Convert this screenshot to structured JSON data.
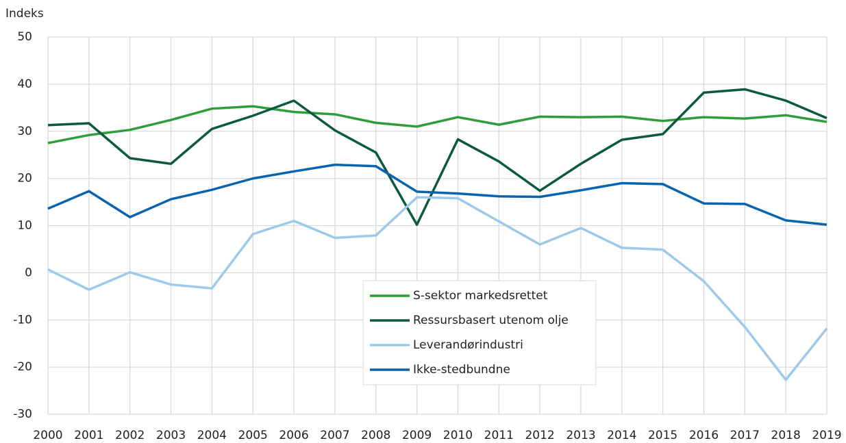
{
  "chart_data": {
    "type": "line",
    "y_axis_label": "Indeks",
    "categories": [
      "2000",
      "2001",
      "2002",
      "2003",
      "2004",
      "2005",
      "2006",
      "2007",
      "2008",
      "2009",
      "2010",
      "2011",
      "2012",
      "2013",
      "2014",
      "2015",
      "2016",
      "2017",
      "2018",
      "2019"
    ],
    "series": [
      {
        "name": "S-sektor markedsrettet",
        "color": "#2e9e3a",
        "values": [
          27.5,
          29.2,
          30.3,
          32.4,
          34.8,
          35.3,
          34.1,
          33.6,
          31.8,
          31.0,
          33.0,
          31.4,
          33.1,
          33.0,
          33.1,
          32.2,
          33.0,
          32.7,
          33.4,
          32.0
        ]
      },
      {
        "name": "Ressursbasert utenom olje",
        "color": "#0b5940",
        "values": [
          31.3,
          31.7,
          24.3,
          23.1,
          30.5,
          33.3,
          36.5,
          30.2,
          25.5,
          10.2,
          28.3,
          23.6,
          17.4,
          23.1,
          28.2,
          29.4,
          38.2,
          38.9,
          36.5,
          32.8
        ]
      },
      {
        "name": "Leverandørindustri",
        "color": "#9dc9ea",
        "values": [
          0.7,
          -3.6,
          0.1,
          -2.5,
          -3.3,
          8.2,
          11.0,
          7.4,
          7.9,
          16.0,
          15.8,
          10.9,
          6.0,
          9.5,
          5.3,
          4.9,
          -1.8,
          -11.5,
          -22.7,
          -11.8
        ]
      },
      {
        "name": "Ikke-stedbundne",
        "color": "#0a64ad",
        "values": [
          13.6,
          17.3,
          11.8,
          15.6,
          17.6,
          20.0,
          21.5,
          22.9,
          22.6,
          17.2,
          16.8,
          16.2,
          16.1,
          17.5,
          19.0,
          18.8,
          14.7,
          14.6,
          11.1,
          10.2
        ]
      }
    ],
    "ylim": [
      -30,
      50
    ],
    "yticks": [
      -30,
      -20,
      -10,
      0,
      10,
      20,
      30,
      40,
      50
    ],
    "grid": true,
    "legend": "lower center"
  }
}
